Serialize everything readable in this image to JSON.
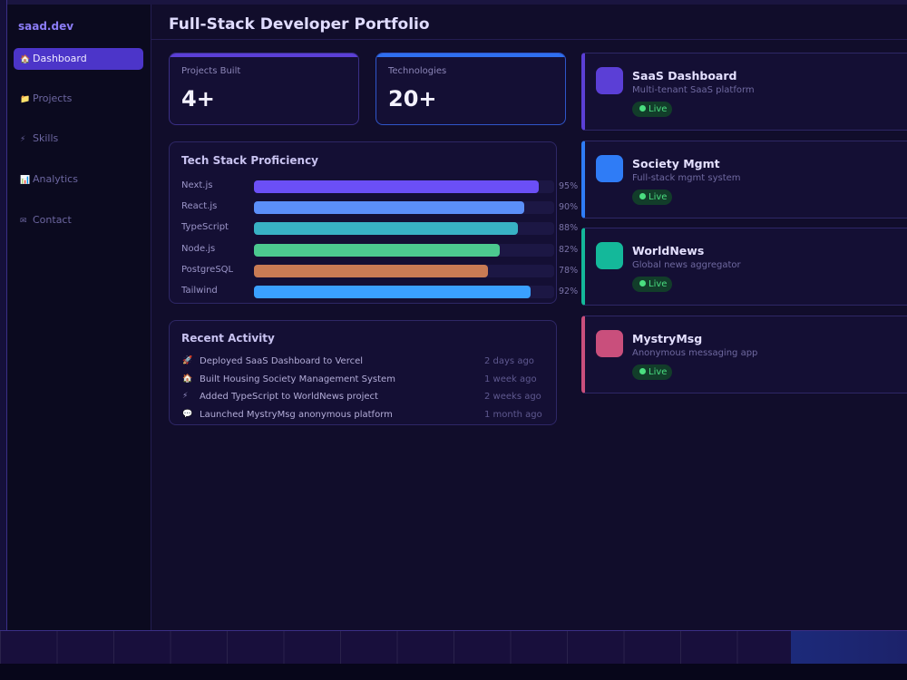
{
  "sidebar": {
    "brand": "saad.dev",
    "nav": [
      {
        "icon": "🏠",
        "label": "Dashboard",
        "active": true
      },
      {
        "icon": "📁",
        "label": "Projects",
        "active": false
      },
      {
        "icon": "⚡",
        "label": "Skills",
        "active": false
      },
      {
        "icon": "📊",
        "label": "Analytics",
        "active": false
      },
      {
        "icon": "✉",
        "label": "Contact",
        "active": false
      }
    ]
  },
  "header": {
    "title": "Full-Stack Developer Portfolio"
  },
  "stats": [
    {
      "label": "Projects Built",
      "value": "4+",
      "color": "#5b3fd6"
    },
    {
      "label": "Technologies",
      "value": "20+",
      "color": "#2f6ff0"
    }
  ],
  "tech_stack": {
    "title": "Tech Stack Proficiency",
    "skills": [
      {
        "name": "Next.js",
        "value": 95,
        "value_label": "95%",
        "color": "#6b4ff6"
      },
      {
        "name": "React.js",
        "value": 90,
        "value_label": "90%",
        "color": "#5b8ff9"
      },
      {
        "name": "TypeScript",
        "value": 88,
        "value_label": "88%",
        "color": "#38b2c4"
      },
      {
        "name": "Node.js",
        "value": 82,
        "value_label": "82%",
        "color": "#4cc98f"
      },
      {
        "name": "PostgreSQL",
        "value": 78,
        "value_label": "78%",
        "color": "#c97b54"
      },
      {
        "name": "Tailwind",
        "value": 92,
        "value_label": "92%",
        "color": "#3aa0ff"
      }
    ]
  },
  "recent_activity": {
    "title": "Recent Activity",
    "items": [
      {
        "icon": "🚀",
        "text": "Deployed SaaS Dashboard to Vercel",
        "time": "2 days ago"
      },
      {
        "icon": "🏠",
        "text": "Built Housing Society Management System",
        "time": "1 week ago"
      },
      {
        "icon": "⚡",
        "text": "Added TypeScript to WorldNews project",
        "time": "2 weeks ago"
      },
      {
        "icon": "💬",
        "text": "Launched MystryMsg anonymous platform",
        "time": "1 month ago"
      }
    ]
  },
  "projects": [
    {
      "name": "SaaS Dashboard",
      "description": "Multi-tenant SaaS platform",
      "status": "Live",
      "color": "#5b3fd6"
    },
    {
      "name": "Society Mgmt",
      "description": "Full-stack mgmt system",
      "status": "Live",
      "color": "#2f7cf6"
    },
    {
      "name": "WorldNews",
      "description": "Global news aggregator",
      "status": "Live",
      "color": "#14b89a"
    },
    {
      "name": "MystryMsg",
      "description": "Anonymous messaging app",
      "status": "Live",
      "color": "#c94f7c"
    }
  ]
}
